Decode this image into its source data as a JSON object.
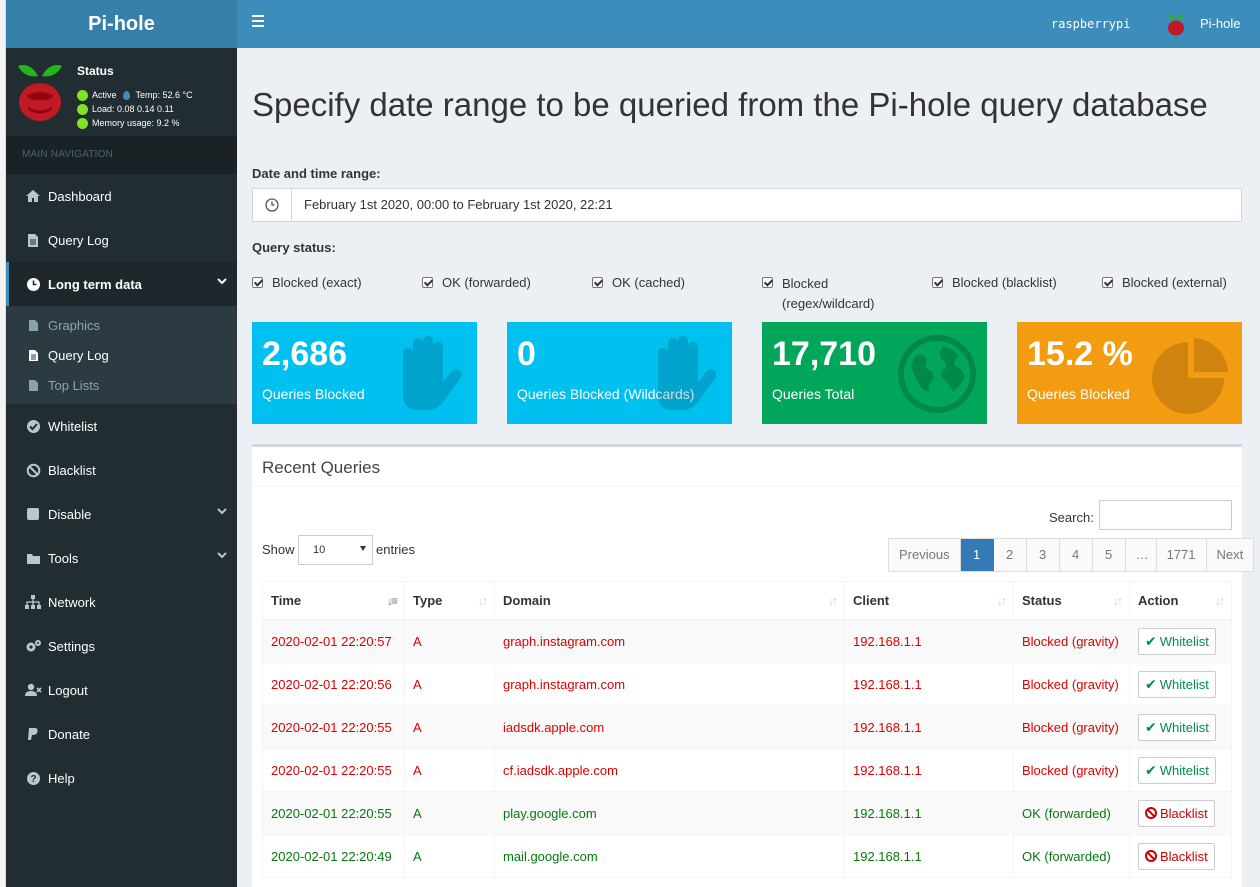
{
  "brand": {
    "title": "Pi-hole"
  },
  "status": {
    "title": "Status",
    "active": "Active",
    "temp": "Temp: 52.6 °C",
    "load": "Load:  0.08  0.14  0.11",
    "memory": "Memory usage:  9.2 %"
  },
  "topbar": {
    "hostname": "raspberrypi",
    "user": "Pi-hole"
  },
  "nav": {
    "header": "MAIN NAVIGATION",
    "dashboard": "Dashboard",
    "querylog": "Query Log",
    "longterm": "Long term data",
    "sub_graphics": "Graphics",
    "sub_querylog": "Query Log",
    "sub_toplists": "Top Lists",
    "whitelist": "Whitelist",
    "blacklist": "Blacklist",
    "disable": "Disable",
    "tools": "Tools",
    "network": "Network",
    "settings": "Settings",
    "logout": "Logout",
    "donate": "Donate",
    "help": "Help"
  },
  "page": {
    "title": "Specify date range to be queried from the Pi-hole query database",
    "range_label": "Date and time range:",
    "range_value": "February 1st 2020, 00:00 to February 1st 2020, 22:21",
    "status_label": "Query status:"
  },
  "filters": [
    {
      "label": "Blocked (exact)",
      "checked": true
    },
    {
      "label": "OK (forwarded)",
      "checked": true
    },
    {
      "label": "OK (cached)",
      "checked": true
    },
    {
      "label": "Blocked (regex/wildcard)",
      "checked": true
    },
    {
      "label": "Blocked (blacklist)",
      "checked": true
    },
    {
      "label": "Blocked (external)",
      "checked": true
    }
  ],
  "stats": [
    {
      "value": "2,686",
      "caption": "Queries Blocked",
      "color": "#00c0ef",
      "icon": "hand-icon"
    },
    {
      "value": "0",
      "caption": "Queries Blocked (Wildcards)",
      "color": "#00c0ef",
      "icon": "hand-icon"
    },
    {
      "value": "17,710",
      "caption": "Queries Total",
      "color": "#00a65a",
      "icon": "globe-icon"
    },
    {
      "value": "15.2 %",
      "caption": "Queries Blocked",
      "color": "#f39c12",
      "icon": "pie-chart-icon"
    }
  ],
  "recent": {
    "title": "Recent Queries",
    "search_label": "Search:",
    "search_value": "",
    "show_label": "Show",
    "entries_value": "10",
    "entries_label": "entries",
    "pager": [
      "Previous",
      "1",
      "2",
      "3",
      "4",
      "5",
      "…",
      "1771",
      "Next"
    ],
    "columns": [
      "Time",
      "Type",
      "Domain",
      "Client",
      "Status",
      "Action"
    ],
    "rows": [
      {
        "time": "2020-02-01 22:20:57",
        "type": "A",
        "domain": "graph.instagram.com",
        "client": "192.168.1.1",
        "status": "Blocked (gravity)",
        "action": "Whitelist"
      },
      {
        "time": "2020-02-01 22:20:56",
        "type": "A",
        "domain": "graph.instagram.com",
        "client": "192.168.1.1",
        "status": "Blocked (gravity)",
        "action": "Whitelist"
      },
      {
        "time": "2020-02-01 22:20:55",
        "type": "A",
        "domain": "iadsdk.apple.com",
        "client": "192.168.1.1",
        "status": "Blocked (gravity)",
        "action": "Whitelist"
      },
      {
        "time": "2020-02-01 22:20:55",
        "type": "A",
        "domain": "cf.iadsdk.apple.com",
        "client": "192.168.1.1",
        "status": "Blocked (gravity)",
        "action": "Whitelist"
      },
      {
        "time": "2020-02-01 22:20:55",
        "type": "A",
        "domain": "play.google.com",
        "client": "192.168.1.1",
        "status": "OK (forwarded)",
        "action": "Blacklist"
      },
      {
        "time": "2020-02-01 22:20:49",
        "type": "A",
        "domain": "mail.google.com",
        "client": "192.168.1.1",
        "status": "OK (forwarded)",
        "action": "Blacklist"
      }
    ]
  }
}
